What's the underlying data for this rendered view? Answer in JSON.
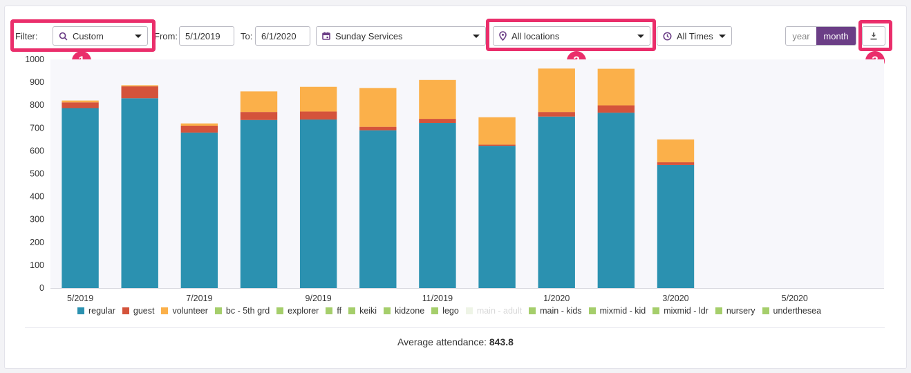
{
  "filters": {
    "filter_label": "Filter:",
    "filter_value": "Custom",
    "from_label": "From:",
    "from_value": "5/1/2019",
    "to_label": "To:",
    "to_value": "6/1/2020",
    "service_value": "Sunday Services",
    "location_value": "All locations",
    "time_value": "All Times"
  },
  "toggle": {
    "year_label": "year",
    "month_label": "month"
  },
  "badges": [
    "1",
    "2",
    "3"
  ],
  "colors": {
    "accent": "#6b3e86",
    "highlight": "#ea2e6b",
    "regular": "#2b91b0",
    "guest": "#d4533b",
    "volunteer": "#fbb04a",
    "other": "#a5ce6b",
    "main_adult": "#eef4e6"
  },
  "chart_data": {
    "type": "bar",
    "stacked": true,
    "categories": [
      "5/2019",
      "6/2019",
      "7/2019",
      "8/2019",
      "9/2019",
      "10/2019",
      "11/2019",
      "12/2019",
      "1/2020",
      "2/2020",
      "3/2020",
      "4/2020",
      "5/2020",
      "6/2020"
    ],
    "x_tick_labels": [
      "5/2019",
      "7/2019",
      "9/2019",
      "11/2019",
      "1/2020",
      "3/2020",
      "5/2020"
    ],
    "ylim": [
      0,
      1000
    ],
    "yticks": [
      0,
      100,
      200,
      300,
      400,
      500,
      600,
      700,
      800,
      900,
      1000
    ],
    "series": [
      {
        "name": "regular",
        "values": [
          787,
          830,
          680,
          735,
          737,
          690,
          722,
          622,
          750,
          767,
          538,
          0,
          0,
          0
        ]
      },
      {
        "name": "guest",
        "values": [
          25,
          52,
          30,
          35,
          35,
          15,
          18,
          5,
          20,
          32,
          12,
          0,
          0,
          0
        ]
      },
      {
        "name": "volunteer",
        "values": [
          8,
          5,
          10,
          90,
          108,
          170,
          170,
          120,
          190,
          160,
          100,
          0,
          0,
          0
        ]
      }
    ],
    "legend": [
      "regular",
      "guest",
      "volunteer",
      "bc - 5th grd",
      "explorer",
      "ff",
      "keiki",
      "kidzone",
      "lego",
      "main - adult",
      "main - kids",
      "mixmid - kid",
      "mixmid - ldr",
      "nursery",
      "underthesea"
    ],
    "legend_disabled": [
      "main - adult"
    ]
  },
  "summary": {
    "avg_label": "Average attendance:",
    "avg_value": "843.8"
  }
}
